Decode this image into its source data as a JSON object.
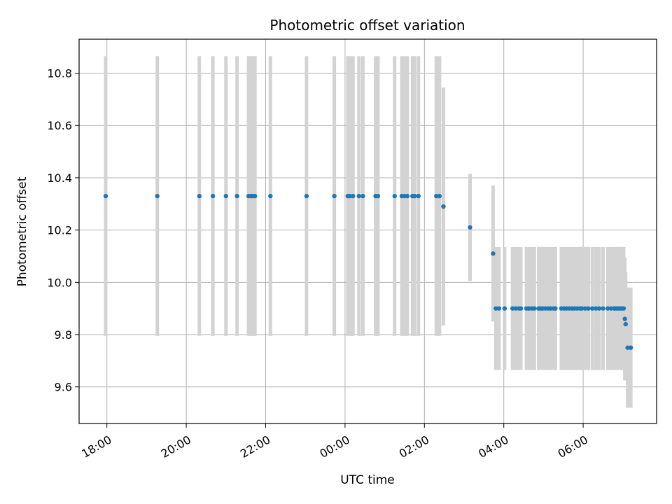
{
  "chart_data": {
    "type": "scatter",
    "title": "Photometric offset variation",
    "xlabel": "UTC time",
    "ylabel": "Photometric offset",
    "x_unit": "hours",
    "x_tick_values": [
      18,
      20,
      22,
      24,
      26,
      28,
      30
    ],
    "x_tick_labels": [
      "18:00",
      "20:00",
      "22:00",
      "00:00",
      "02:00",
      "04:00",
      "06:00"
    ],
    "y_ticks": [
      9.6,
      9.8,
      10.0,
      10.2,
      10.4,
      10.6,
      10.8
    ],
    "y_tick_labels": [
      "9.6",
      "9.8",
      "10.0",
      "10.2",
      "10.4",
      "10.6",
      "10.8"
    ],
    "xlim": [
      17.3,
      31.85
    ],
    "ylim": [
      9.46,
      10.93
    ],
    "grid": true,
    "marker_color": "#1f77b4",
    "errorbar_color": "#d3d3d3",
    "series": [
      {
        "x_time_hours": [
          17.97,
          19.27,
          20.33,
          20.67,
          21.0,
          21.28,
          21.57,
          21.63,
          21.67,
          21.73,
          22.12,
          23.03,
          23.73,
          24.07,
          24.12,
          24.2,
          24.35,
          24.45,
          24.77,
          24.83,
          25.25,
          25.43,
          25.5,
          25.57,
          25.7,
          25.75,
          25.85,
          26.3,
          26.38,
          26.48,
          27.15,
          27.73,
          27.8,
          27.88,
          28.02,
          28.22,
          28.3,
          28.38,
          28.43,
          28.57,
          28.63,
          28.7,
          28.77,
          28.88,
          28.93,
          28.98,
          29.05,
          29.12,
          29.18,
          29.25,
          29.3,
          29.45,
          29.52,
          29.58,
          29.65,
          29.72,
          29.78,
          29.85,
          29.92,
          29.97,
          30.05,
          30.13,
          30.23,
          30.32,
          30.4,
          30.5,
          30.62,
          30.7,
          30.78,
          30.83,
          30.88,
          30.93,
          30.97,
          31.02,
          31.05,
          31.07,
          31.12,
          31.2
        ],
        "y": [
          10.33,
          10.33,
          10.33,
          10.33,
          10.33,
          10.33,
          10.33,
          10.33,
          10.33,
          10.33,
          10.33,
          10.33,
          10.33,
          10.33,
          10.33,
          10.33,
          10.33,
          10.33,
          10.33,
          10.33,
          10.33,
          10.33,
          10.33,
          10.33,
          10.33,
          10.33,
          10.33,
          10.33,
          10.33,
          10.29,
          10.21,
          10.11,
          9.9,
          9.9,
          9.9,
          9.9,
          9.9,
          9.9,
          9.9,
          9.9,
          9.9,
          9.9,
          9.9,
          9.9,
          9.9,
          9.9,
          9.9,
          9.9,
          9.9,
          9.9,
          9.9,
          9.9,
          9.9,
          9.9,
          9.9,
          9.9,
          9.9,
          9.9,
          9.9,
          9.9,
          9.9,
          9.9,
          9.9,
          9.9,
          9.9,
          9.9,
          9.9,
          9.9,
          9.9,
          9.9,
          9.9,
          9.9,
          9.9,
          9.9,
          9.86,
          9.84,
          9.75,
          9.75
        ],
        "yerr": [
          0.535,
          0.535,
          0.535,
          0.535,
          0.535,
          0.535,
          0.535,
          0.535,
          0.535,
          0.535,
          0.535,
          0.535,
          0.535,
          0.535,
          0.535,
          0.535,
          0.535,
          0.535,
          0.535,
          0.535,
          0.535,
          0.535,
          0.535,
          0.535,
          0.535,
          0.535,
          0.535,
          0.535,
          0.535,
          0.455,
          0.205,
          0.26,
          0.235,
          0.235,
          0.235,
          0.235,
          0.235,
          0.235,
          0.235,
          0.235,
          0.235,
          0.235,
          0.235,
          0.235,
          0.235,
          0.235,
          0.235,
          0.235,
          0.235,
          0.235,
          0.235,
          0.235,
          0.235,
          0.235,
          0.235,
          0.235,
          0.235,
          0.235,
          0.235,
          0.235,
          0.235,
          0.235,
          0.235,
          0.235,
          0.235,
          0.235,
          0.235,
          0.235,
          0.235,
          0.235,
          0.235,
          0.235,
          0.235,
          0.235,
          0.235,
          0.2,
          0.23,
          0.23
        ]
      }
    ]
  }
}
